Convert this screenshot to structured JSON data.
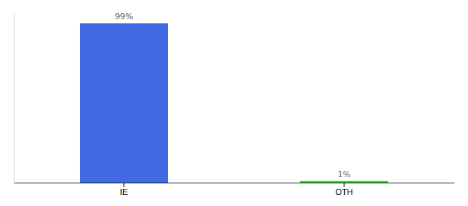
{
  "chart_data": {
    "type": "bar",
    "categories": [
      "IE",
      "OTH"
    ],
    "values": [
      99,
      1
    ],
    "value_labels": [
      "99%",
      "1%"
    ],
    "colors": [
      "#4169e1",
      "#32cd32"
    ],
    "ylim": [
      0,
      105
    ],
    "data_labels": true,
    "tick_labels": "x"
  }
}
